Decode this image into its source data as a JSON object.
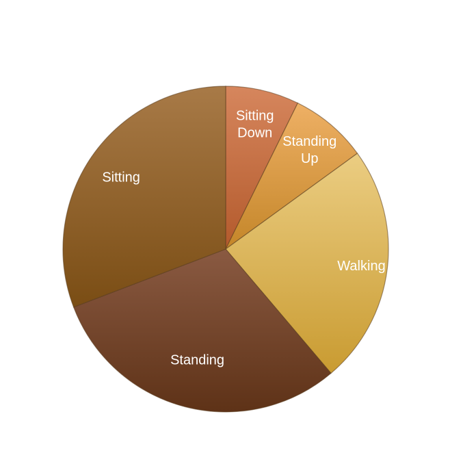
{
  "chart_data": {
    "type": "pie",
    "title": "",
    "start_angle_deg": 0,
    "direction": "clockwise",
    "slices": [
      {
        "label": [
          "Sitting",
          "Down"
        ],
        "value": 7.3,
        "color_top": "#d6865d",
        "color_bottom": "#b35a2c"
      },
      {
        "label": [
          "Standing",
          "Up"
        ],
        "value": 7.7,
        "color_top": "#eeb065",
        "color_bottom": "#c48629"
      },
      {
        "label": [
          "Walking"
        ],
        "value": 23.8,
        "color_top": "#ebcd82",
        "color_bottom": "#c99b31"
      },
      {
        "label": [
          "Standing"
        ],
        "value": 30.4,
        "color_top": "#8a5a42",
        "color_bottom": "#5e3217"
      },
      {
        "label": [
          "Sitting"
        ],
        "value": 30.8,
        "color_top": "#a87a47",
        "color_bottom": "#7a4d14"
      }
    ]
  }
}
